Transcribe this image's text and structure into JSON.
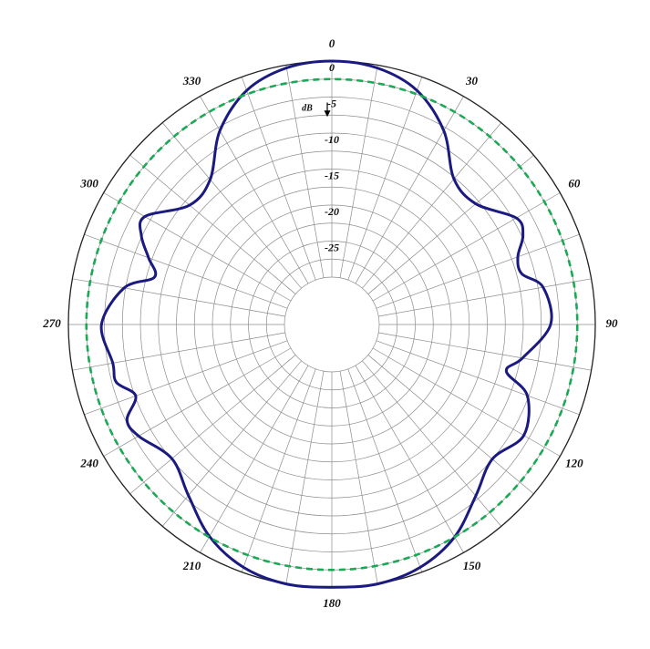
{
  "chart_data": {
    "type": "polar-line",
    "title": "",
    "unit_label": "dB",
    "angle_ticks": [
      0,
      30,
      60,
      90,
      120,
      150,
      180,
      210,
      240,
      270,
      300,
      330
    ],
    "radial_range": [
      -30,
      0
    ],
    "radial_ticks": [
      0,
      -5,
      -10,
      -15,
      -20,
      -25
    ],
    "radial_grid_step": 2.5,
    "angular_grid_step": 10,
    "grid": true,
    "reference_level": -2.5,
    "colors": {
      "pattern": "#1a1a80",
      "reference": "#1aaa55",
      "grid": "#8c8c8c",
      "outline": "#222222"
    },
    "series": [
      {
        "style": "solid",
        "angle": [
          0,
          10,
          20,
          30,
          40,
          50,
          60,
          65,
          70,
          75,
          80,
          90,
          100,
          105,
          110,
          120,
          130,
          140,
          150,
          160,
          170,
          180,
          190,
          200,
          210,
          220,
          230,
          240,
          245,
          250,
          255,
          260,
          270,
          280,
          285,
          290,
          295,
          300,
          310,
          320,
          330,
          340,
          350
        ],
        "value": [
          0,
          -0.4,
          -2,
          -5.5,
          -10.2,
          -10.5,
          -7,
          -7.3,
          -9.1,
          -9.3,
          -6.8,
          -6.2,
          -9.7,
          -11.5,
          -7.7,
          -5.8,
          -7.5,
          -5.5,
          -2.5,
          -0.7,
          0,
          -0.1,
          0,
          -0.7,
          -2.6,
          -5.6,
          -7.6,
          -5.6,
          -5.2,
          -7.6,
          -5.6,
          -5.7,
          -4.6,
          -7.3,
          -11.1,
          -9.5,
          -7.4,
          -6.6,
          -10.8,
          -10.3,
          -5.5,
          -2,
          -0.4
        ]
      },
      {
        "style": "dashed",
        "angle": [
          0,
          90,
          180,
          270
        ],
        "value": [
          -2.5,
          -2.5,
          -2.5,
          -2.5
        ]
      }
    ]
  }
}
